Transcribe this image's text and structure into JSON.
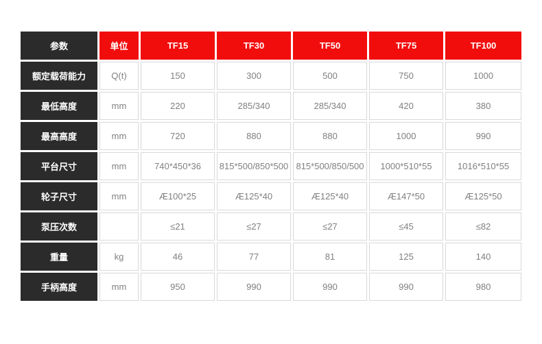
{
  "table": {
    "header": {
      "param_label": "参数",
      "unit_label": "单位",
      "models": [
        "TF15",
        "TF30",
        "TF50",
        "TF75",
        "TF100"
      ]
    },
    "rows": [
      {
        "label": "额定载荷能力",
        "unit": "Q(t)",
        "values": [
          "150",
          "300",
          "500",
          "750",
          "1000"
        ]
      },
      {
        "label": "最低高度",
        "unit": "mm",
        "values": [
          "220",
          "285/340",
          "285/340",
          "420",
          "380"
        ]
      },
      {
        "label": "最高高度",
        "unit": "mm",
        "values": [
          "720",
          "880",
          "880",
          "1000",
          "990"
        ]
      },
      {
        "label": "平台尺寸",
        "unit": "mm",
        "values": [
          "740*450*36",
          "815*500/850*500",
          "815*500/850/500",
          "1000*510*55",
          "1016*510*55"
        ]
      },
      {
        "label": "轮子尺寸",
        "unit": "mm",
        "values": [
          "Æ100*25",
          "Æ125*40",
          "Æ125*40",
          "Æ147*50",
          "Æ125*50"
        ]
      },
      {
        "label": "泵压次数",
        "unit": "",
        "values": [
          "≤21",
          "≤27",
          "≤27",
          "≤45",
          "≤82"
        ]
      },
      {
        "label": "重量",
        "unit": "kg",
        "values": [
          "46",
          "77",
          "81",
          "125",
          "140"
        ]
      },
      {
        "label": "手柄高度",
        "unit": "mm",
        "values": [
          "950",
          "990",
          "990",
          "990",
          "980"
        ]
      }
    ],
    "colors": {
      "accent_red": "#f20d0d",
      "label_black": "#2b2b2b",
      "cell_border": "#d8d8d8",
      "value_text": "#7f7f7f"
    }
  },
  "chart_data": {
    "type": "table",
    "title": "",
    "columns": [
      "参数",
      "单位",
      "TF15",
      "TF30",
      "TF50",
      "TF75",
      "TF100"
    ],
    "rows": [
      [
        "额定载荷能力",
        "Q(t)",
        "150",
        "300",
        "500",
        "750",
        "1000"
      ],
      [
        "最低高度",
        "mm",
        "220",
        "285/340",
        "285/340",
        "420",
        "380"
      ],
      [
        "最高高度",
        "mm",
        "720",
        "880",
        "880",
        "1000",
        "990"
      ],
      [
        "平台尺寸",
        "mm",
        "740*450*36",
        "815*500/850*500",
        "815*500/850/500",
        "1000*510*55",
        "1016*510*55"
      ],
      [
        "轮子尺寸",
        "mm",
        "Æ100*25",
        "Æ125*40",
        "Æ125*40",
        "Æ147*50",
        "Æ125*50"
      ],
      [
        "泵压次数",
        "",
        "≤21",
        "≤27",
        "≤27",
        "≤45",
        "≤82"
      ],
      [
        "重量",
        "kg",
        "46",
        "77",
        "81",
        "125",
        "140"
      ],
      [
        "手柄高度",
        "mm",
        "950",
        "990",
        "990",
        "990",
        "980"
      ]
    ]
  }
}
